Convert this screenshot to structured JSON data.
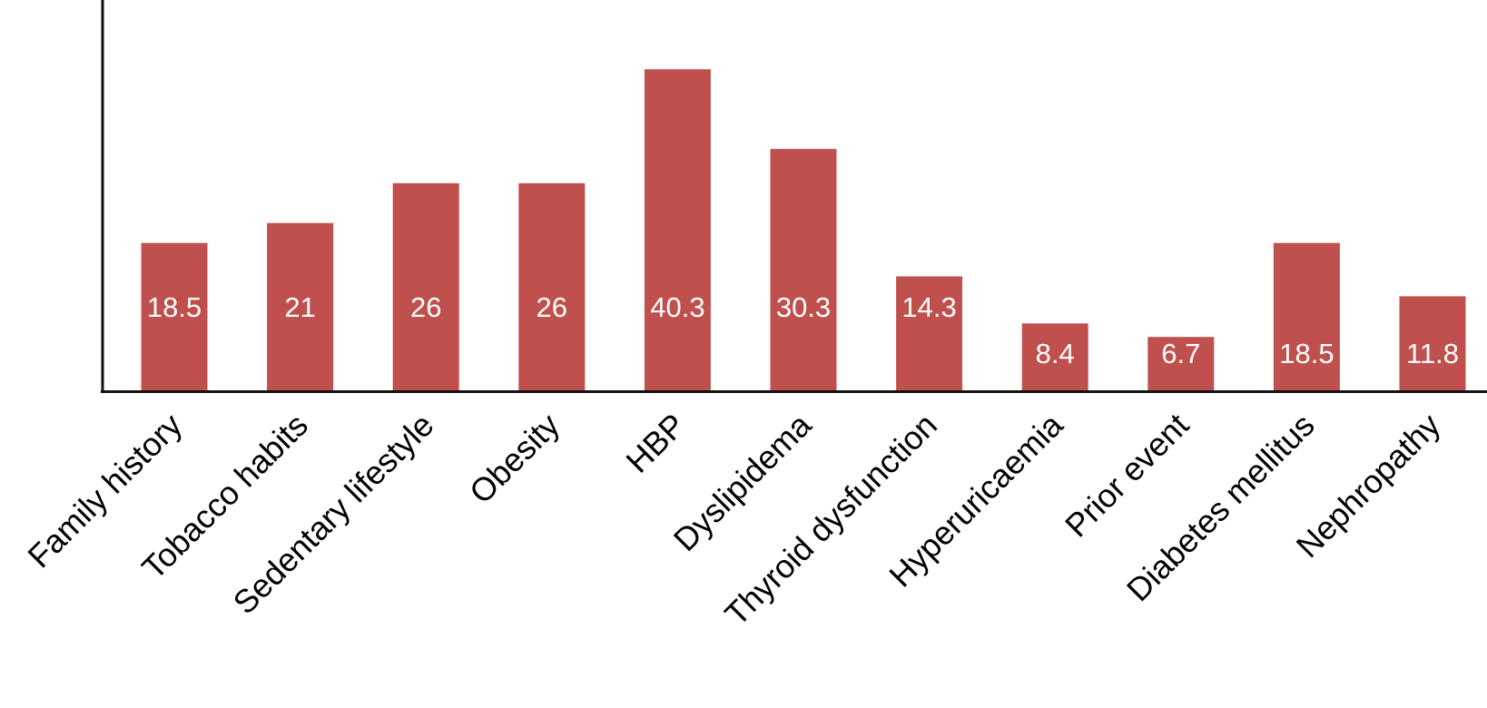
{
  "chart_data": {
    "type": "bar",
    "categories": [
      "Family history",
      "Tobacco habits",
      "Sedentary lifestyle",
      "Obesity",
      "HBP",
      "Dyslipidema",
      "Thyroid dysfunction",
      "Hyperuricaemia",
      "Prior event",
      "Diabetes mellitus",
      "Nephropathy"
    ],
    "values": [
      18.5,
      21,
      26,
      26,
      40.3,
      30.3,
      14.3,
      8.4,
      6.7,
      18.5,
      11.8
    ],
    "color": "#c0504d",
    "ylim": [
      0,
      49
    ]
  }
}
